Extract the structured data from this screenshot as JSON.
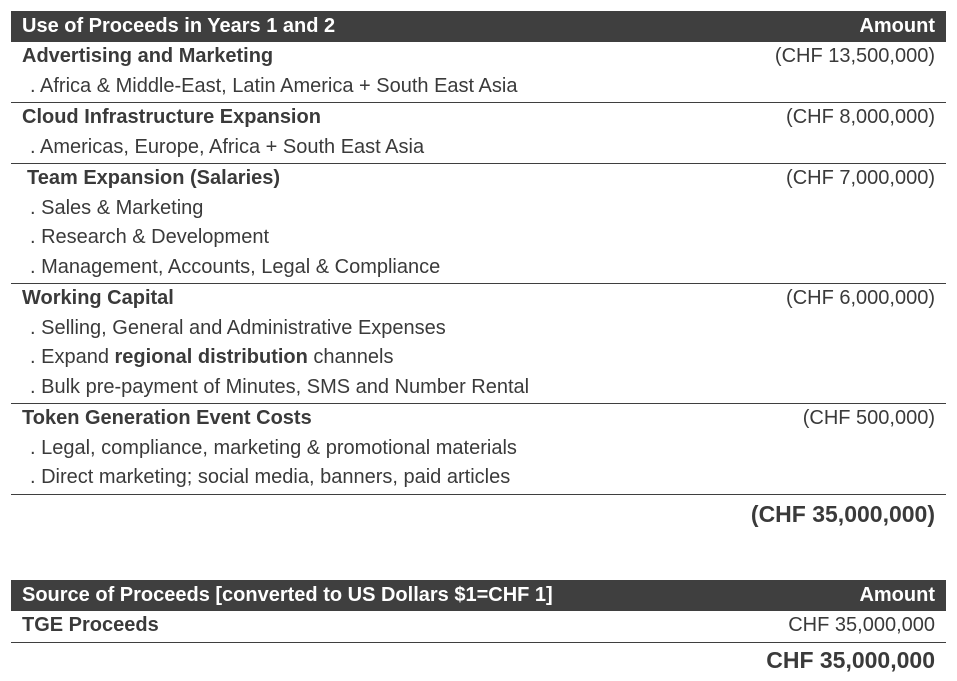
{
  "use_table": {
    "header": {
      "label": "Use of Proceeds in Years 1 and 2",
      "amount": "Amount"
    },
    "groups": [
      {
        "title": "Advertising and Marketing",
        "amount": "(CHF 13,500,000)",
        "items": [
          ". Africa & Middle-East, Latin America + South East Asia"
        ]
      },
      {
        "title": "Cloud Infrastructure Expansion",
        "amount": "(CHF 8,000,000)",
        "items": [
          ". Americas, Europe, Africa + South East Asia"
        ]
      },
      {
        "title": "Team Expansion (Salaries)",
        "amount": "(CHF 7,000,000)",
        "items": [
          ". Sales & Marketing",
          ". Research & Development",
          ". Management, Accounts, Legal & Compliance"
        ]
      },
      {
        "title": "Working Capital",
        "amount": "(CHF 6,000,000)",
        "items": [
          ". Selling, General and Administrative Expenses",
          {
            "pre": ". Expand ",
            "bold": "regional distribution",
            "post": " channels"
          },
          ". Bulk pre-payment of Minutes, SMS and Number Rental"
        ]
      },
      {
        "title": "Token Generation Event Costs",
        "amount": "(CHF 500,000)",
        "items": [
          ". Legal, compliance, marketing & promotional materials",
          ". Direct marketing; social media, banners, paid articles"
        ]
      }
    ],
    "total": "(CHF 35,000,000)"
  },
  "source_table": {
    "header": {
      "label": "Source of Proceeds [converted to US Dollars $1=CHF 1]",
      "amount": "Amount"
    },
    "rows": [
      {
        "label": "TGE Proceeds",
        "amount": "CHF 35,000,000"
      }
    ],
    "total": "CHF 35,000,000"
  }
}
